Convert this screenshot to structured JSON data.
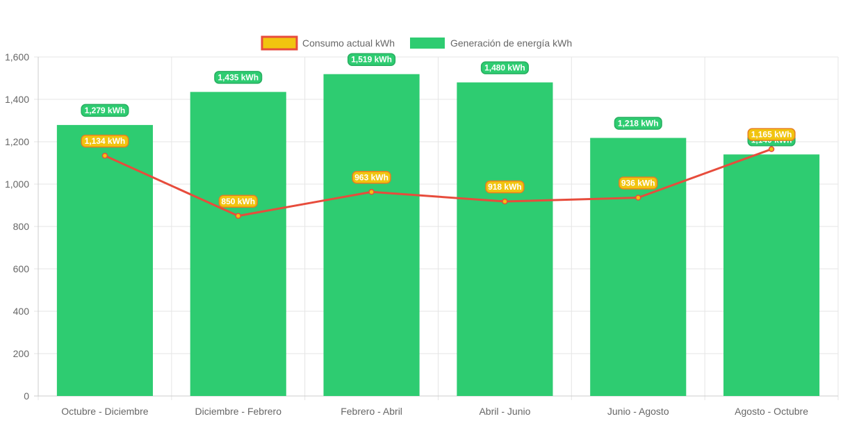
{
  "chart_data": {
    "type": "bar",
    "title": "",
    "xlabel": "",
    "ylabel": "",
    "categories": [
      "Octubre - Diciembre",
      "Diciembre - Febrero",
      "Febrero - Abril",
      "Abril - Junio",
      "Junio - Agosto",
      "Agosto - Octubre"
    ],
    "ylim": [
      0,
      1600
    ],
    "yticks": [
      "0",
      "200",
      "400",
      "600",
      "800",
      "1,000",
      "1,200",
      "1,400",
      "1,600"
    ],
    "ytick_values": [
      0,
      200,
      400,
      600,
      800,
      1000,
      1200,
      1400,
      1600
    ],
    "grid": true,
    "legend_position": "top",
    "series": [
      {
        "name": "Consumo actual kWh",
        "type": "line",
        "color": "#e74c3c",
        "fill": "#f1c40f",
        "values": [
          1134,
          850,
          963,
          918,
          936,
          1165
        ],
        "labels": [
          "1,134 kWh",
          "850 kWh",
          "963 kWh",
          "918 kWh",
          "936 kWh",
          "1,165 kWh"
        ]
      },
      {
        "name": "Generación de energía kWh",
        "type": "bar",
        "color": "#2ecc71",
        "values": [
          1279,
          1435,
          1519,
          1480,
          1218,
          1140
        ],
        "labels": [
          "1,279 kWh",
          "1,435 kWh",
          "1,519 kWh",
          "1,480 kWh",
          "1,218 kWh",
          "1,140 kWh"
        ]
      }
    ]
  }
}
